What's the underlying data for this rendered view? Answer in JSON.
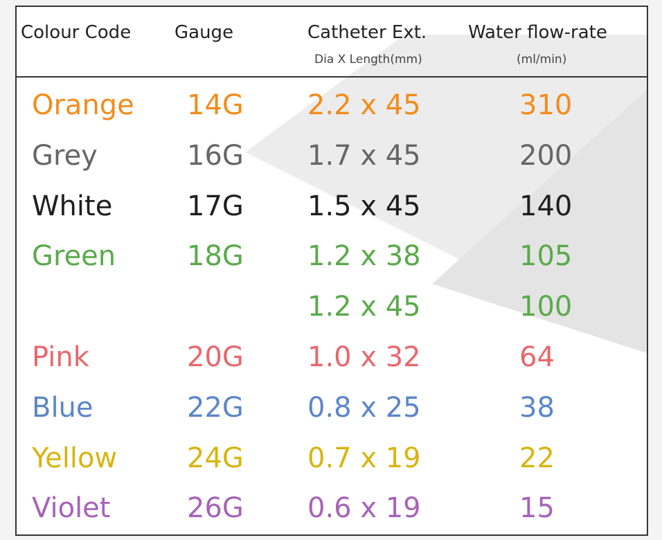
{
  "table": {
    "header": [
      "Colour Code",
      "Gauge",
      "Catheter Ext.",
      "Water flow-rate"
    ],
    "subheader": [
      null,
      null,
      "Dia X Length(mm)",
      "(ml/min)"
    ],
    "rows": [
      {
        "cells": [
          "Orange",
          "14G",
          "2.2 x 45",
          310
        ],
        "color": "#f28c1c"
      },
      {
        "cells": [
          "Grey",
          "16G",
          "1.7 x 45",
          200
        ],
        "color": "#666666"
      },
      {
        "cells": [
          "White",
          "17G",
          "1.5 x 45",
          140
        ],
        "color": "#1e1e1e"
      },
      {
        "cells": [
          "Green",
          "18G",
          "1.2 x 38",
          105
        ],
        "color": "#5aaa4a"
      },
      {
        "cells": [
          null,
          null,
          "1.2 x 45",
          100
        ],
        "color": "#5aaa4a"
      },
      {
        "cells": [
          "Pink",
          "20G",
          "1.0 x 32",
          64
        ],
        "color": "#e8676c"
      },
      {
        "cells": [
          "Blue",
          "22G",
          "0.8 x 25",
          38
        ],
        "color": "#5b86c9"
      },
      {
        "cells": [
          "Yellow",
          "24G",
          "0.7 x 19",
          22
        ],
        "color": "#d8b410"
      },
      {
        "cells": [
          "Violet",
          "26G",
          "0.6 x 19",
          15
        ],
        "color": "#a663b8"
      }
    ]
  }
}
